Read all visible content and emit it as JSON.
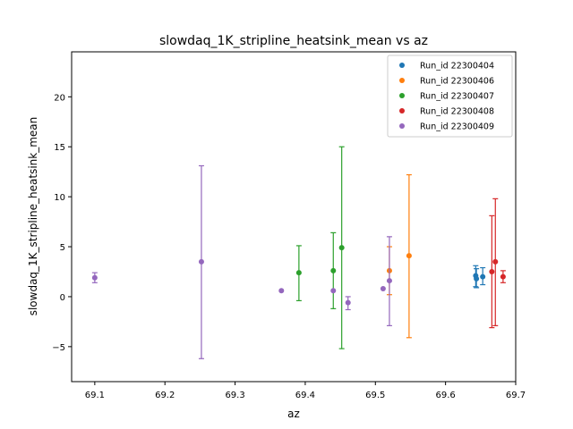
{
  "chart_data": {
    "type": "scatter",
    "title": "slowdaq_1K_stripline_heatsink_mean vs az",
    "xlabel": "az",
    "ylabel": "slowdaq_1K_stripline_heatsink_mean",
    "xlim": [
      69.067,
      69.7
    ],
    "ylim": [
      -8.5,
      24.5
    ],
    "xticks": [
      69.1,
      69.2,
      69.3,
      69.4,
      69.5,
      69.6,
      69.7
    ],
    "yticks": [
      -5,
      0,
      5,
      10,
      15,
      20
    ],
    "legend": "top-right",
    "grid": false,
    "series": [
      {
        "name": "Run_id 22300404",
        "color": "#1f77b4",
        "points": [
          {
            "x": 69.643,
            "y": 2.1,
            "ylo": 1.0,
            "yhi": 3.1
          },
          {
            "x": 69.644,
            "y": 1.8,
            "ylo": 0.9,
            "yhi": 2.8
          },
          {
            "x": 69.653,
            "y": 2.0,
            "ylo": 1.2,
            "yhi": 2.9
          }
        ]
      },
      {
        "name": "Run_id 22300406",
        "color": "#ff7f0e",
        "points": [
          {
            "x": 69.52,
            "y": 2.6,
            "ylo": 0.2,
            "yhi": 5.0
          },
          {
            "x": 69.548,
            "y": 4.1,
            "ylo": -4.1,
            "yhi": 12.2
          }
        ]
      },
      {
        "name": "Run_id 22300407",
        "color": "#2ca02c",
        "points": [
          {
            "x": 69.391,
            "y": 2.4,
            "ylo": -0.4,
            "yhi": 5.1
          },
          {
            "x": 69.44,
            "y": 2.6,
            "ylo": -1.2,
            "yhi": 6.4
          },
          {
            "x": 69.452,
            "y": 4.9,
            "ylo": -5.2,
            "yhi": 15.0
          }
        ]
      },
      {
        "name": "Run_id 22300408",
        "color": "#d62728",
        "points": [
          {
            "x": 69.666,
            "y": 2.5,
            "ylo": -3.1,
            "yhi": 8.1
          },
          {
            "x": 69.671,
            "y": 3.5,
            "ylo": -2.9,
            "yhi": 9.8
          },
          {
            "x": 69.682,
            "y": 2.0,
            "ylo": 1.4,
            "yhi": 2.6
          }
        ]
      },
      {
        "name": "Run_id 22300409",
        "color": "#9467bd",
        "points": [
          {
            "x": 69.1,
            "y": 1.9,
            "ylo": 1.4,
            "yhi": 2.4
          },
          {
            "x": 69.252,
            "y": 3.5,
            "ylo": -6.2,
            "yhi": 13.1
          },
          {
            "x": 69.366,
            "y": 0.6,
            "ylo": 0.6,
            "yhi": 0.6
          },
          {
            "x": 69.44,
            "y": 0.6,
            "ylo": 0.6,
            "yhi": 0.6
          },
          {
            "x": 69.461,
            "y": -0.6,
            "ylo": -1.3,
            "yhi": 0.0
          },
          {
            "x": 69.511,
            "y": 0.8,
            "ylo": 0.8,
            "yhi": 0.8
          },
          {
            "x": 69.52,
            "y": 1.6,
            "ylo": -2.9,
            "yhi": 6.0
          }
        ]
      }
    ]
  }
}
